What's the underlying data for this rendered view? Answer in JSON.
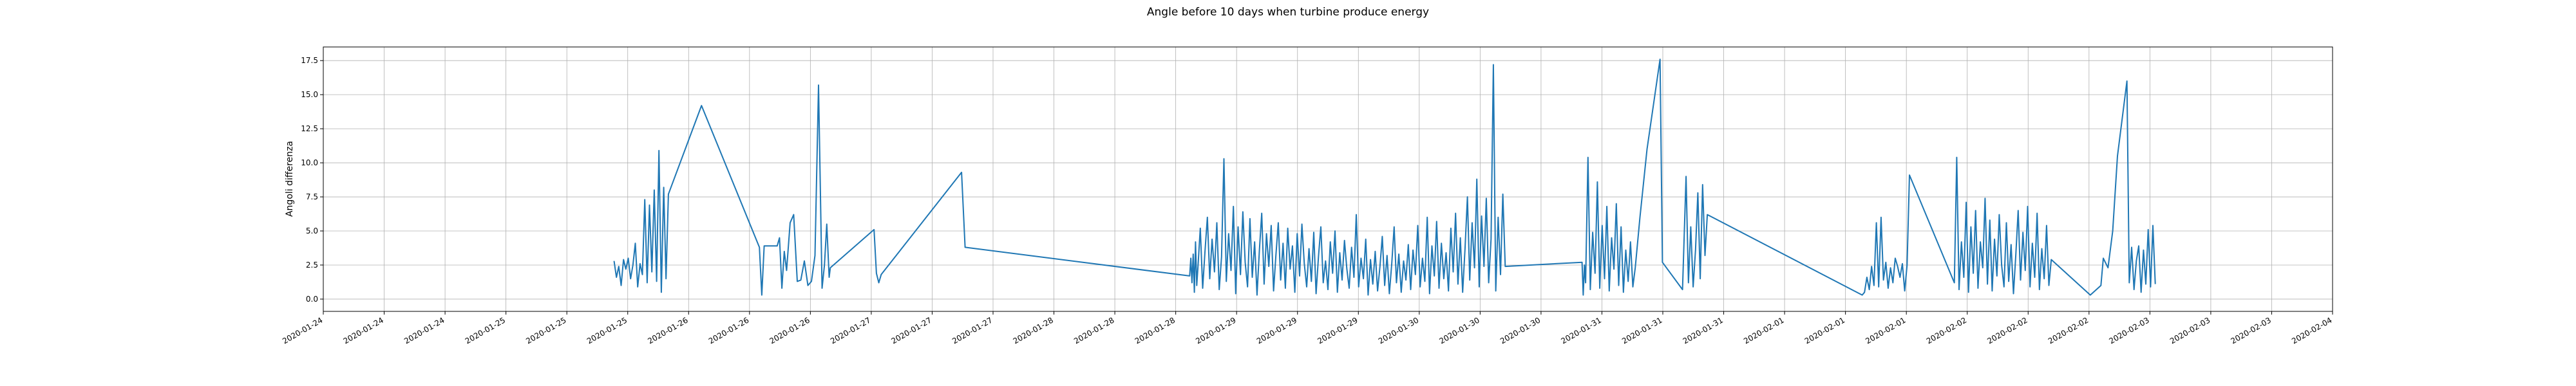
{
  "chart_data": {
    "type": "line",
    "title": "Angle before 10 days when turbine produce energy",
    "xlabel": "",
    "ylabel": "Angoli differenza",
    "x_tick_labels": [
      "2020-01-24",
      "2020-01-24",
      "2020-01-24",
      "2020-01-25",
      "2020-01-25",
      "2020-01-25",
      "2020-01-26",
      "2020-01-26",
      "2020-01-26",
      "2020-01-27",
      "2020-01-27",
      "2020-01-27",
      "2020-01-28",
      "2020-01-28",
      "2020-01-28",
      "2020-01-29",
      "2020-01-29",
      "2020-01-29",
      "2020-01-30",
      "2020-01-30",
      "2020-01-30",
      "2020-01-31",
      "2020-01-31",
      "2020-01-31",
      "2020-02-01",
      "2020-02-01",
      "2020-02-01",
      "2020-02-02",
      "2020-02-02",
      "2020-02-02",
      "2020-02-03",
      "2020-02-03",
      "2020-02-03",
      "2020-02-04"
    ],
    "y_ticks": [
      0.0,
      2.5,
      5.0,
      7.5,
      10.0,
      12.5,
      15.0,
      17.5
    ],
    "y_tick_labels": [
      "0.0",
      "2.5",
      "5.0",
      "7.5",
      "10.0",
      "12.5",
      "15.0",
      "17.5"
    ],
    "ylim": [
      -0.9,
      18.5
    ],
    "grid": true,
    "line_color": "#1f77b4",
    "series": [
      {
        "x_start": "2020-01-24",
        "x_end": "2020-02-04",
        "points": [
          [
            2.46,
            2.8
          ],
          [
            2.48,
            1.6
          ],
          [
            2.5,
            2.4
          ],
          [
            2.52,
            1.0
          ],
          [
            2.54,
            2.9
          ],
          [
            2.56,
            2.2
          ],
          [
            2.58,
            3.0
          ],
          [
            2.6,
            1.5
          ],
          [
            2.62,
            2.5
          ],
          [
            2.64,
            4.1
          ],
          [
            2.66,
            0.9
          ],
          [
            2.68,
            2.6
          ],
          [
            2.7,
            1.8
          ],
          [
            2.72,
            7.3
          ],
          [
            2.74,
            1.2
          ],
          [
            2.76,
            6.9
          ],
          [
            2.78,
            2.0
          ],
          [
            2.8,
            8.0
          ],
          [
            2.82,
            1.3
          ],
          [
            2.84,
            10.9
          ],
          [
            2.86,
            0.5
          ],
          [
            2.88,
            8.2
          ],
          [
            2.9,
            1.5
          ],
          [
            2.92,
            7.7
          ],
          [
            3.2,
            14.2
          ],
          [
            3.69,
            3.8
          ],
          [
            3.71,
            0.3
          ],
          [
            3.73,
            3.9
          ],
          [
            3.75,
            3.9
          ],
          [
            3.84,
            3.9
          ],
          [
            3.86,
            4.5
          ],
          [
            3.88,
            0.8
          ],
          [
            3.9,
            3.5
          ],
          [
            3.92,
            2.1
          ],
          [
            3.95,
            5.6
          ],
          [
            3.98,
            6.2
          ],
          [
            4.01,
            1.3
          ],
          [
            4.04,
            1.4
          ],
          [
            4.07,
            2.8
          ],
          [
            4.1,
            1.0
          ],
          [
            4.13,
            1.3
          ],
          [
            4.16,
            3.2
          ],
          [
            4.19,
            15.7
          ],
          [
            4.22,
            0.8
          ],
          [
            4.24,
            2.5
          ],
          [
            4.26,
            5.5
          ],
          [
            4.28,
            1.6
          ],
          [
            4.29,
            2.3
          ],
          [
            4.66,
            5.1
          ],
          [
            4.68,
            1.9
          ],
          [
            4.7,
            1.2
          ],
          [
            4.72,
            1.8
          ],
          [
            5.4,
            9.3
          ],
          [
            5.43,
            3.8
          ],
          [
            7.33,
            1.7
          ],
          [
            7.34,
            3.0
          ],
          [
            7.35,
            1.2
          ],
          [
            7.36,
            3.3
          ],
          [
            7.37,
            0.5
          ],
          [
            7.38,
            4.2
          ],
          [
            7.39,
            1.0
          ],
          [
            7.4,
            2.3
          ],
          [
            7.42,
            5.2
          ],
          [
            7.44,
            0.8
          ],
          [
            7.46,
            3.5
          ],
          [
            7.48,
            6.0
          ],
          [
            7.5,
            1.5
          ],
          [
            7.52,
            4.4
          ],
          [
            7.54,
            2.0
          ],
          [
            7.56,
            5.6
          ],
          [
            7.58,
            0.7
          ],
          [
            7.6,
            3.1
          ],
          [
            7.62,
            10.3
          ],
          [
            7.64,
            1.3
          ],
          [
            7.66,
            4.8
          ],
          [
            7.68,
            2.1
          ],
          [
            7.7,
            6.8
          ],
          [
            7.72,
            0.4
          ],
          [
            7.74,
            5.3
          ],
          [
            7.76,
            1.8
          ],
          [
            7.78,
            6.4
          ],
          [
            7.8,
            2.7
          ],
          [
            7.82,
            0.9
          ],
          [
            7.84,
            5.9
          ],
          [
            7.86,
            1.6
          ],
          [
            7.88,
            4.2
          ],
          [
            7.9,
            0.3
          ],
          [
            7.92,
            3.6
          ],
          [
            7.94,
            6.3
          ],
          [
            7.96,
            1.1
          ],
          [
            7.98,
            4.8
          ],
          [
            8.0,
            2.4
          ],
          [
            8.02,
            5.4
          ],
          [
            8.04,
            0.6
          ],
          [
            8.06,
            3.2
          ],
          [
            8.08,
            5.6
          ],
          [
            8.1,
            1.4
          ],
          [
            8.12,
            4.1
          ],
          [
            8.14,
            0.8
          ],
          [
            8.16,
            5.2
          ],
          [
            8.18,
            2.2
          ],
          [
            8.2,
            3.9
          ],
          [
            8.22,
            0.5
          ],
          [
            8.24,
            4.8
          ],
          [
            8.26,
            1.7
          ],
          [
            8.28,
            5.5
          ],
          [
            8.3,
            2.6
          ],
          [
            8.32,
            0.9
          ],
          [
            8.34,
            3.7
          ],
          [
            8.36,
            1.3
          ],
          [
            8.38,
            4.9
          ],
          [
            8.4,
            0.4
          ],
          [
            8.42,
            3.1
          ],
          [
            8.44,
            5.3
          ],
          [
            8.46,
            1.2
          ],
          [
            8.48,
            2.8
          ],
          [
            8.5,
            0.7
          ],
          [
            8.52,
            4.2
          ],
          [
            8.54,
            1.9
          ],
          [
            8.56,
            5.0
          ],
          [
            8.58,
            0.5
          ],
          [
            8.6,
            3.4
          ],
          [
            8.62,
            1.4
          ],
          [
            8.64,
            4.3
          ],
          [
            8.66,
            2.2
          ],
          [
            8.68,
            0.8
          ],
          [
            8.7,
            3.8
          ],
          [
            8.72,
            1.6
          ],
          [
            8.74,
            6.2
          ],
          [
            8.76,
            0.9
          ],
          [
            8.78,
            3.0
          ],
          [
            8.8,
            1.5
          ],
          [
            8.82,
            4.4
          ],
          [
            8.84,
            0.3
          ],
          [
            8.86,
            2.9
          ],
          [
            8.88,
            1.1
          ],
          [
            8.9,
            3.5
          ],
          [
            8.92,
            0.6
          ],
          [
            8.94,
            2.4
          ],
          [
            8.96,
            4.6
          ],
          [
            8.98,
            1.0
          ],
          [
            9.0,
            3.2
          ],
          [
            9.02,
            0.4
          ],
          [
            9.04,
            2.6
          ],
          [
            9.06,
            5.3
          ],
          [
            9.08,
            1.2
          ],
          [
            9.1,
            3.3
          ],
          [
            9.12,
            0.5
          ],
          [
            9.14,
            2.8
          ],
          [
            9.16,
            1.4
          ],
          [
            9.18,
            4.0
          ],
          [
            9.2,
            0.7
          ],
          [
            9.22,
            3.6
          ],
          [
            9.24,
            1.8
          ],
          [
            9.26,
            5.4
          ],
          [
            9.28,
            0.9
          ],
          [
            9.3,
            3.0
          ],
          [
            9.32,
            1.3
          ],
          [
            9.34,
            6.0
          ],
          [
            9.36,
            0.4
          ],
          [
            9.38,
            3.9
          ],
          [
            9.4,
            1.7
          ],
          [
            9.42,
            5.7
          ],
          [
            9.44,
            0.8
          ],
          [
            9.46,
            4.1
          ],
          [
            9.48,
            1.5
          ],
          [
            9.5,
            3.4
          ],
          [
            9.52,
            0.6
          ],
          [
            9.54,
            5.2
          ],
          [
            9.56,
            2.0
          ],
          [
            9.58,
            6.3
          ],
          [
            9.6,
            1.1
          ],
          [
            9.62,
            4.5
          ],
          [
            9.64,
            0.5
          ],
          [
            9.66,
            3.7
          ],
          [
            9.68,
            7.5
          ],
          [
            9.7,
            1.4
          ],
          [
            9.72,
            5.6
          ],
          [
            9.74,
            2.3
          ],
          [
            9.76,
            8.8
          ],
          [
            9.78,
            0.9
          ],
          [
            9.8,
            6.1
          ],
          [
            9.82,
            2.4
          ],
          [
            9.84,
            7.4
          ],
          [
            9.86,
            1.2
          ],
          [
            9.88,
            4.4
          ],
          [
            9.9,
            17.2
          ],
          [
            9.92,
            0.6
          ],
          [
            9.94,
            6.0
          ],
          [
            9.96,
            1.8
          ],
          [
            9.98,
            7.7
          ],
          [
            10.0,
            2.4
          ],
          [
            10.65,
            2.7
          ],
          [
            10.66,
            0.3
          ],
          [
            10.67,
            2.5
          ],
          [
            10.68,
            1.2
          ],
          [
            10.7,
            10.4
          ],
          [
            10.72,
            0.7
          ],
          [
            10.74,
            4.9
          ],
          [
            10.76,
            1.9
          ],
          [
            10.78,
            8.6
          ],
          [
            10.8,
            0.8
          ],
          [
            10.82,
            5.4
          ],
          [
            10.84,
            1.5
          ],
          [
            10.86,
            6.8
          ],
          [
            10.88,
            0.6
          ],
          [
            10.9,
            4.5
          ],
          [
            10.92,
            2.2
          ],
          [
            10.94,
            7.0
          ],
          [
            10.96,
            1.0
          ],
          [
            10.98,
            5.3
          ],
          [
            11.0,
            0.5
          ],
          [
            11.02,
            3.6
          ],
          [
            11.04,
            1.3
          ],
          [
            11.06,
            4.2
          ],
          [
            11.08,
            0.9
          ],
          [
            11.1,
            2.3
          ],
          [
            11.14,
            6.0
          ],
          [
            11.2,
            11.0
          ],
          [
            11.31,
            17.6
          ],
          [
            11.33,
            2.7
          ],
          [
            11.5,
            0.7
          ],
          [
            11.53,
            9.0
          ],
          [
            11.55,
            1.2
          ],
          [
            11.57,
            5.3
          ],
          [
            11.59,
            0.9
          ],
          [
            11.61,
            3.6
          ],
          [
            11.63,
            7.8
          ],
          [
            11.65,
            1.5
          ],
          [
            11.67,
            8.4
          ],
          [
            11.69,
            3.2
          ],
          [
            11.71,
            6.2
          ],
          [
            13.02,
            0.3
          ],
          [
            13.04,
            0.5
          ],
          [
            13.06,
            1.6
          ],
          [
            13.08,
            0.7
          ],
          [
            13.1,
            2.4
          ],
          [
            13.12,
            1.0
          ],
          [
            13.14,
            5.6
          ],
          [
            13.16,
            0.9
          ],
          [
            13.18,
            6.0
          ],
          [
            13.2,
            1.4
          ],
          [
            13.22,
            2.7
          ],
          [
            13.24,
            0.8
          ],
          [
            13.26,
            2.3
          ],
          [
            13.28,
            1.2
          ],
          [
            13.3,
            3.0
          ],
          [
            13.32,
            2.4
          ],
          [
            13.34,
            1.6
          ],
          [
            13.36,
            2.6
          ],
          [
            13.38,
            0.6
          ],
          [
            13.4,
            2.5
          ],
          [
            13.42,
            9.1
          ],
          [
            13.8,
            1.2
          ],
          [
            13.82,
            10.4
          ],
          [
            13.84,
            0.7
          ],
          [
            13.86,
            4.2
          ],
          [
            13.88,
            1.6
          ],
          [
            13.9,
            7.1
          ],
          [
            13.92,
            0.5
          ],
          [
            13.94,
            5.3
          ],
          [
            13.96,
            1.9
          ],
          [
            13.98,
            6.5
          ],
          [
            14.0,
            0.8
          ],
          [
            14.02,
            4.2
          ],
          [
            14.04,
            2.3
          ],
          [
            14.06,
            7.4
          ],
          [
            14.08,
            1.1
          ],
          [
            14.1,
            5.8
          ],
          [
            14.12,
            0.6
          ],
          [
            14.14,
            4.4
          ],
          [
            14.16,
            1.7
          ],
          [
            14.18,
            6.2
          ],
          [
            14.2,
            2.5
          ],
          [
            14.22,
            0.9
          ],
          [
            14.24,
            5.6
          ],
          [
            14.26,
            1.3
          ],
          [
            14.28,
            4.0
          ],
          [
            14.3,
            0.4
          ],
          [
            14.32,
            3.2
          ],
          [
            14.34,
            6.5
          ],
          [
            14.36,
            1.4
          ],
          [
            14.38,
            4.9
          ],
          [
            14.4,
            2.1
          ],
          [
            14.42,
            6.8
          ],
          [
            14.44,
            0.9
          ],
          [
            14.46,
            4.1
          ],
          [
            14.48,
            1.6
          ],
          [
            14.5,
            6.3
          ],
          [
            14.52,
            0.7
          ],
          [
            14.54,
            3.7
          ],
          [
            14.56,
            1.5
          ],
          [
            14.58,
            5.4
          ],
          [
            14.6,
            1.0
          ],
          [
            14.62,
            2.9
          ],
          [
            14.95,
            0.3
          ],
          [
            15.04,
            1.0
          ],
          [
            15.06,
            3.0
          ],
          [
            15.1,
            2.3
          ],
          [
            15.14,
            5.0
          ],
          [
            15.18,
            10.5
          ],
          [
            15.26,
            16.0
          ],
          [
            15.28,
            1.2
          ],
          [
            15.3,
            3.8
          ],
          [
            15.32,
            0.7
          ],
          [
            15.34,
            2.8
          ],
          [
            15.36,
            3.9
          ],
          [
            15.38,
            0.5
          ],
          [
            15.4,
            3.6
          ],
          [
            15.42,
            1.1
          ],
          [
            15.44,
            5.1
          ],
          [
            15.46,
            0.9
          ],
          [
            15.48,
            5.4
          ],
          [
            15.5,
            1.1
          ]
        ]
      }
    ]
  }
}
